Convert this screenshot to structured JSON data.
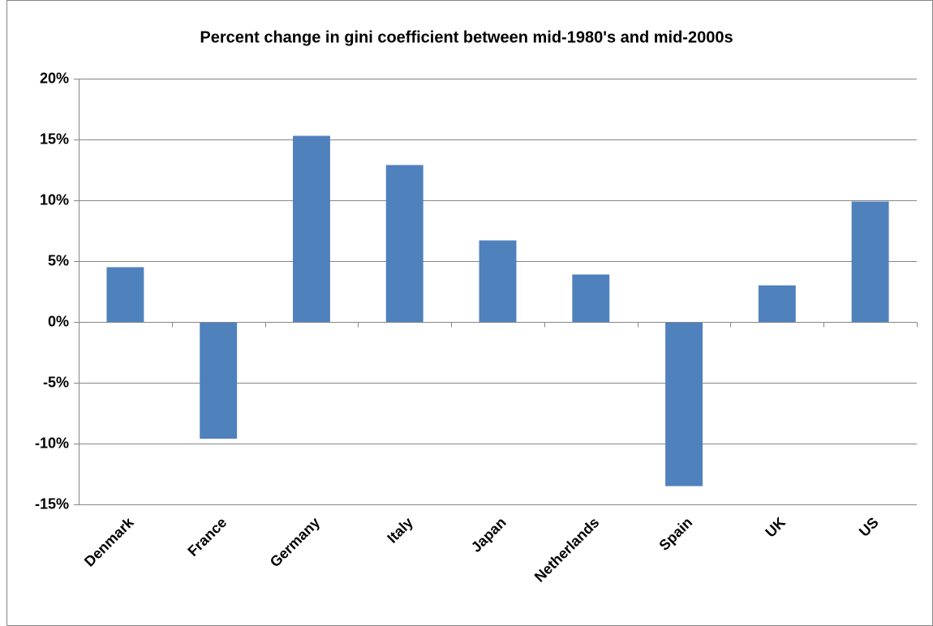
{
  "chart_data": {
    "type": "bar",
    "title": "Percent change in gini coefficient between mid-1980's and mid-2000s",
    "categories": [
      "Denmark",
      "France",
      "Germany",
      "Italy",
      "Japan",
      "Netherlands",
      "Spain",
      "UK",
      "US"
    ],
    "values": [
      4.5,
      -9.6,
      15.3,
      12.9,
      6.7,
      3.9,
      -13.5,
      3.0,
      9.9
    ],
    "color": "#4f81bd",
    "ylim": [
      -15,
      20
    ],
    "yticks": [
      {
        "value": -15,
        "label": "-15%"
      },
      {
        "value": -10,
        "label": "-10%"
      },
      {
        "value": -5,
        "label": "-5%"
      },
      {
        "value": 0,
        "label": "0%"
      },
      {
        "value": 5,
        "label": "5%"
      },
      {
        "value": 10,
        "label": "10%"
      },
      {
        "value": 15,
        "label": "15%"
      },
      {
        "value": 20,
        "label": "20%"
      }
    ],
    "grid": true
  }
}
